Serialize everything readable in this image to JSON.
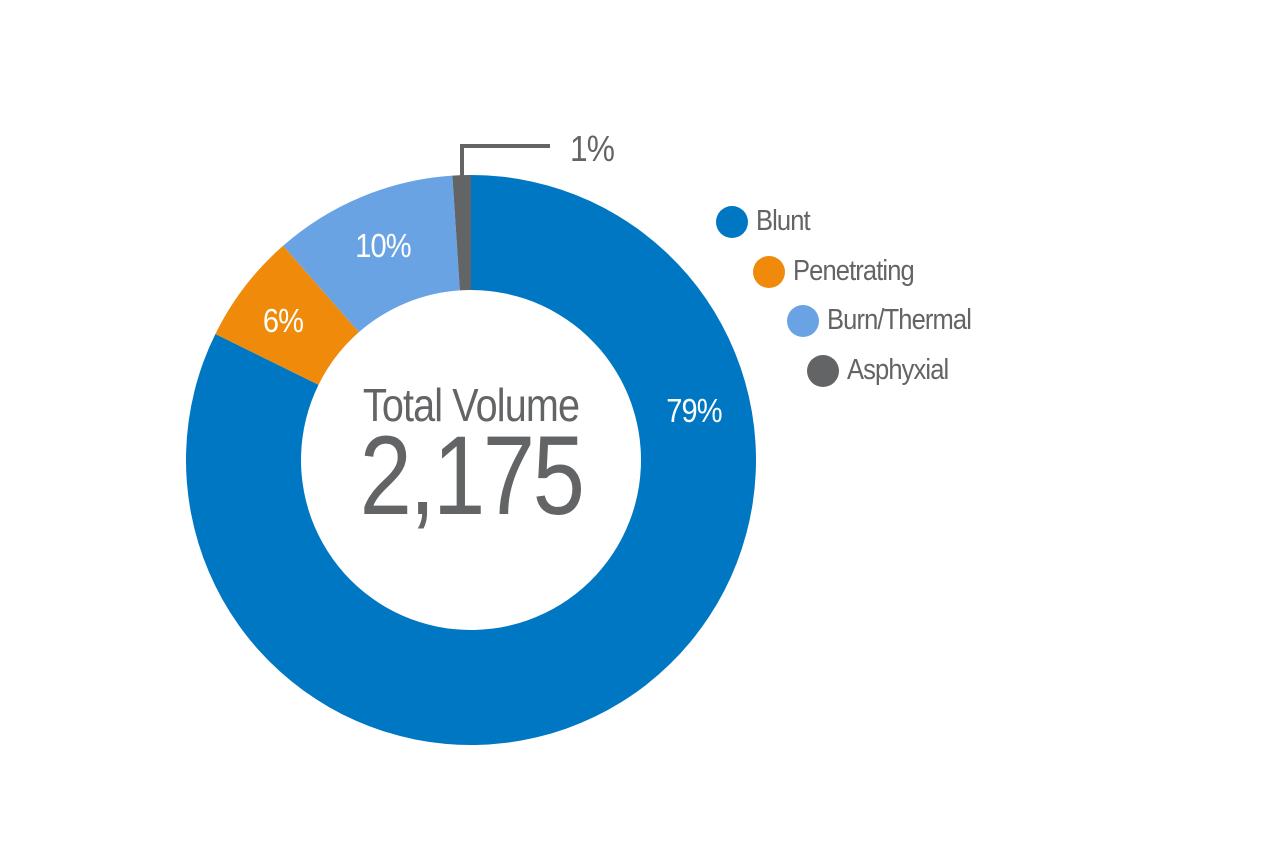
{
  "chart_data": {
    "type": "pie",
    "subtype": "donut",
    "title": "",
    "center_label": "Total Volume",
    "center_value": "2,175",
    "categories": [
      "Blunt",
      "Penetrating",
      "Burn/Thermal",
      "Asphyxial"
    ],
    "values": [
      79,
      6,
      10,
      1
    ],
    "unit": "%",
    "value_labels": [
      "79%",
      "6%",
      "10%",
      "1%"
    ],
    "colors": [
      "#0077c2",
      "#ef8a0b",
      "#6aa3e3",
      "#636466"
    ],
    "legend_position": "right"
  },
  "center": {
    "title": "Total Volume",
    "value": "2,175"
  },
  "slices": {
    "blunt": {
      "label": "79%"
    },
    "penetrating": {
      "label": "6%"
    },
    "burn": {
      "label": "10%"
    },
    "asphyxial": {
      "label": "1%"
    }
  },
  "legend": [
    {
      "label": "Blunt",
      "color": "#0077c2"
    },
    {
      "label": "Penetrating",
      "color": "#ef8a0b"
    },
    {
      "label": "Burn/Thermal",
      "color": "#6aa3e3"
    },
    {
      "label": "Asphyxial",
      "color": "#636466"
    }
  ]
}
